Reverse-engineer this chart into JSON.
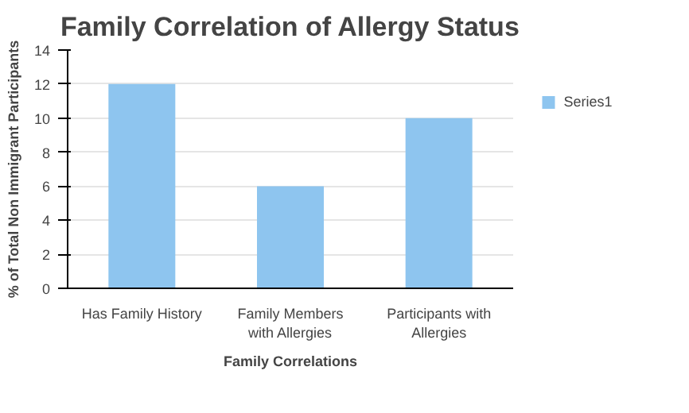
{
  "chart_data": {
    "type": "bar",
    "title": "Family Correlation of Allergy Status",
    "xlabel": "Family Correlations",
    "ylabel": "% of Total Non Immigrant Participants",
    "categories": [
      "Has Family History",
      "Family Members\nwith Allergies",
      "Participants with\nAllergies"
    ],
    "series": [
      {
        "name": "Series1",
        "color": "#8ec5ef",
        "values": [
          12,
          6,
          10
        ]
      }
    ],
    "ylim": [
      0,
      14
    ],
    "yticks": [
      0,
      2,
      4,
      6,
      8,
      10,
      12,
      14
    ],
    "grid": "y",
    "legend": "right"
  }
}
